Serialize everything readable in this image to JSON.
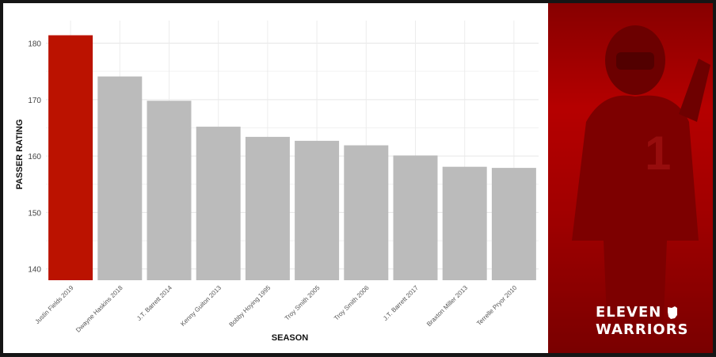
{
  "chart_data": {
    "type": "bar",
    "xlabel": "SEASON",
    "ylabel": "PASSER RATING",
    "ylim": [
      138,
      184
    ],
    "yticks": [
      140,
      150,
      160,
      170,
      180
    ],
    "grid": true,
    "categories": [
      "Justin Fields 2019",
      "Dwayne Haskins 2018",
      "J.T. Barrett 2014",
      "Kenny Guiton 2013",
      "Bobby Hoying 1995",
      "Troy Smith 2005",
      "Troy Smith 2006",
      "J.T. Barrett 2017",
      "Braxton Miller 2013",
      "Terrelle Pryor 2010"
    ],
    "values": [
      181.4,
      174.1,
      169.8,
      165.2,
      163.4,
      162.7,
      161.9,
      160.1,
      158.1,
      157.9
    ],
    "colors": [
      "#bb1200",
      "#bbbbbb",
      "#bbbbbb",
      "#bbbbbb",
      "#bbbbbb",
      "#bbbbbb",
      "#bbbbbb",
      "#bbbbbb",
      "#bbbbbb",
      "#bbbbbb"
    ]
  },
  "brand": {
    "line1": "ELEVEN",
    "line2": "WARRIORS",
    "logo_icon": "ohio-state-outline-icon",
    "photo": "football-player-celebrating-red-tint"
  }
}
